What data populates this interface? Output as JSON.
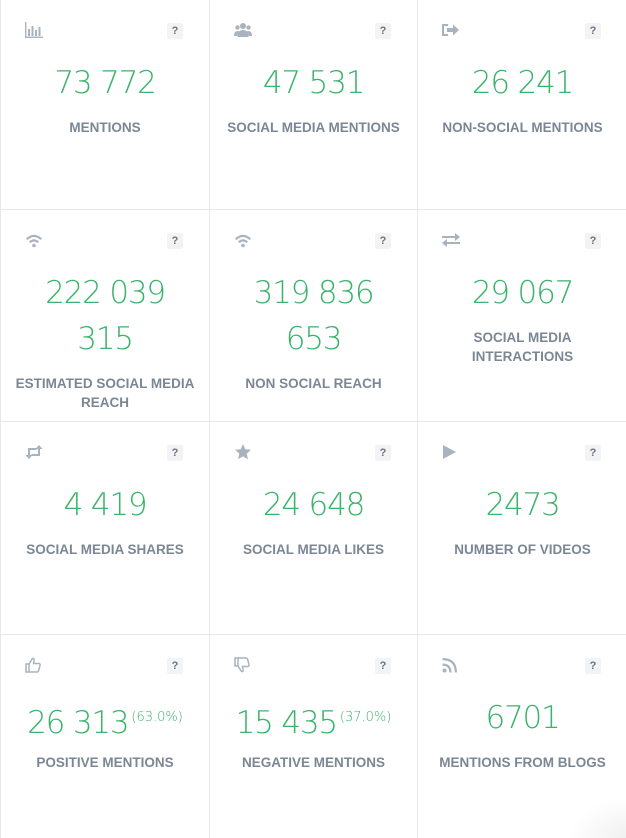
{
  "cards": [
    {
      "icon": "bar-chart-icon",
      "help": "?",
      "value": "73 772",
      "label": "MENTIONS"
    },
    {
      "icon": "users-icon",
      "help": "?",
      "value": "47 531",
      "label": "SOCIAL MEDIA MENTIONS"
    },
    {
      "icon": "sign-out-icon",
      "help": "?",
      "value": "26 241",
      "label": "NON-SOCIAL MENTIONS"
    },
    {
      "icon": "wifi-icon",
      "help": "?",
      "value_line1": "222 039",
      "value_line2": "315",
      "label": "ESTIMATED SOCIAL MEDIA REACH"
    },
    {
      "icon": "wifi-icon",
      "help": "?",
      "value_line1": "319 836",
      "value_line2": "653",
      "label": "NON SOCIAL REACH"
    },
    {
      "icon": "exchange-icon",
      "help": "?",
      "value": "29 067",
      "label": "SOCIAL MEDIA INTERACTIONS"
    },
    {
      "icon": "retweet-icon",
      "help": "?",
      "value": "4 419",
      "label": "SOCIAL MEDIA SHARES"
    },
    {
      "icon": "star-icon",
      "help": "?",
      "value": "24 648",
      "label": "SOCIAL MEDIA LIKES"
    },
    {
      "icon": "play-icon",
      "help": "?",
      "value": "2473",
      "label": "NUMBER OF VIDEOS"
    },
    {
      "icon": "thumbs-up-icon",
      "help": "?",
      "value": "26 313",
      "percent": "(63.0%)",
      "label": "POSITIVE MENTIONS"
    },
    {
      "icon": "thumbs-down-icon",
      "help": "?",
      "value": "15 435",
      "percent": "(37.0%)",
      "label": "NEGATIVE MENTIONS"
    },
    {
      "icon": "rss-icon",
      "help": "?",
      "value": "6701",
      "label": "MENTIONS FROM BLOGS"
    }
  ],
  "colors": {
    "value": "#3bb36b",
    "label": "#7b8794",
    "icon": "#a9b3bd",
    "border": "#e6e8ea"
  }
}
